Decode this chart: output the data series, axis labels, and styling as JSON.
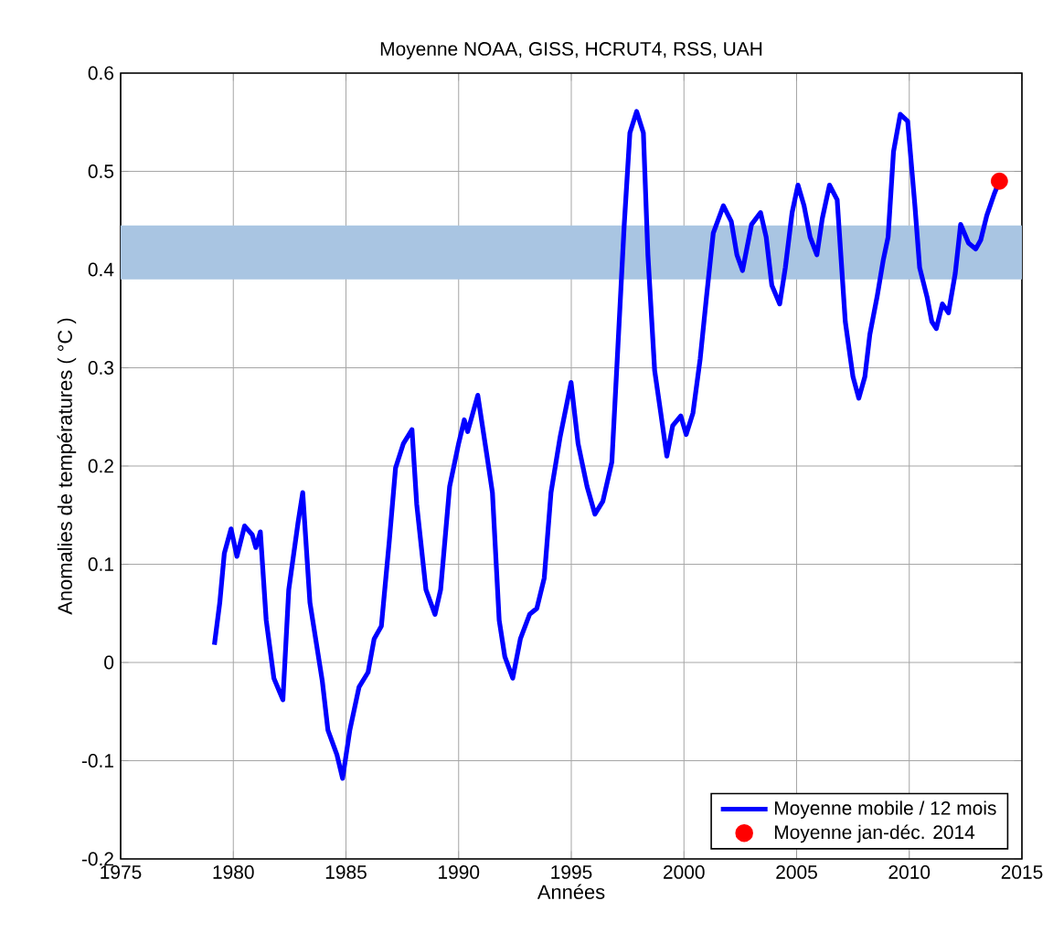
{
  "chart_data": {
    "type": "line",
    "title": "Moyenne NOAA, GISS, HCRUT4, RSS, UAH",
    "xlabel": "Années",
    "ylabel": "Anomalies de températures ( °C )",
    "xlim": [
      1975,
      2015
    ],
    "xticks": [
      1975,
      1980,
      1985,
      1990,
      1995,
      2000,
      2005,
      2010,
      2015
    ],
    "ylim": [
      -0.2,
      0.6
    ],
    "yticks": [
      -0.2,
      -0.1,
      0,
      0.1,
      0.2,
      0.3,
      0.4,
      0.5,
      0.6
    ],
    "grid": true,
    "legend": "bottom right",
    "bands": [
      {
        "axis": "y",
        "from": 0.39,
        "to": 0.445,
        "color": "#a9c5e2"
      }
    ],
    "series": [
      {
        "name": "Moyenne mobile / 12 mois",
        "color": "#0000ff",
        "line_style": "solid",
        "marker": "none",
        "x": [
          1979.16,
          1979.4,
          1979.6,
          1979.9,
          1980.16,
          1980.5,
          1980.84,
          1981.0,
          1981.2,
          1981.46,
          1981.8,
          1982.2,
          1982.46,
          1982.87,
          1983.08,
          1983.4,
          1983.95,
          1984.2,
          1984.6,
          1984.85,
          1985.17,
          1985.58,
          1985.98,
          1986.25,
          1986.57,
          1986.92,
          1987.2,
          1987.55,
          1987.93,
          1988.14,
          1988.55,
          1988.95,
          1989.2,
          1989.6,
          1990.0,
          1990.25,
          1990.4,
          1990.85,
          1991.26,
          1991.5,
          1991.8,
          1992.05,
          1992.4,
          1992.74,
          1993.15,
          1993.47,
          1993.8,
          1994.1,
          1994.5,
          1994.99,
          1995.3,
          1995.7,
          1996.05,
          1996.4,
          1996.8,
          1997.07,
          1997.35,
          1997.6,
          1997.9,
          1998.2,
          1998.4,
          1998.7,
          1998.97,
          1999.24,
          1999.5,
          1999.86,
          2000.1,
          2000.4,
          2000.72,
          2001.0,
          2001.3,
          2001.75,
          2002.1,
          2002.35,
          2002.6,
          2003.0,
          2003.4,
          2003.65,
          2003.9,
          2004.25,
          2004.5,
          2004.8,
          2005.06,
          2005.33,
          2005.6,
          2005.9,
          2006.14,
          2006.46,
          2006.8,
          2007.16,
          2007.5,
          2007.76,
          2008.03,
          2008.25,
          2008.57,
          2008.84,
          2009.06,
          2009.3,
          2009.6,
          2009.93,
          2010.25,
          2010.46,
          2010.79,
          2011.0,
          2011.2,
          2011.47,
          2011.74,
          2012.04,
          2012.28,
          2012.63,
          2012.95,
          2013.17,
          2013.44,
          2013.77,
          2014.0
        ],
        "values": [
          0.018,
          0.061,
          0.111,
          0.136,
          0.108,
          0.139,
          0.13,
          0.117,
          0.133,
          0.043,
          -0.016,
          -0.038,
          0.074,
          0.142,
          0.173,
          0.061,
          -0.019,
          -0.069,
          -0.094,
          -0.118,
          -0.069,
          -0.025,
          -0.01,
          0.024,
          0.037,
          0.123,
          0.198,
          0.223,
          0.237,
          0.161,
          0.074,
          0.049,
          0.074,
          0.179,
          0.223,
          0.247,
          0.235,
          0.272,
          0.21,
          0.173,
          0.043,
          0.006,
          -0.016,
          0.024,
          0.049,
          0.055,
          0.086,
          0.173,
          0.229,
          0.285,
          0.223,
          0.179,
          0.151,
          0.164,
          0.204,
          0.322,
          0.446,
          0.539,
          0.561,
          0.539,
          0.415,
          0.297,
          0.254,
          0.21,
          0.241,
          0.251,
          0.232,
          0.254,
          0.309,
          0.372,
          0.437,
          0.465,
          0.449,
          0.415,
          0.399,
          0.446,
          0.458,
          0.433,
          0.384,
          0.365,
          0.402,
          0.458,
          0.486,
          0.465,
          0.433,
          0.415,
          0.452,
          0.486,
          0.471,
          0.347,
          0.291,
          0.269,
          0.291,
          0.334,
          0.372,
          0.409,
          0.433,
          0.52,
          0.558,
          0.551,
          0.465,
          0.402,
          0.372,
          0.347,
          0.34,
          0.365,
          0.356,
          0.396,
          0.446,
          0.427,
          0.421,
          0.43,
          0.455,
          0.477,
          0.49
        ]
      },
      {
        "name": "Moyenne jan-déc. 2014",
        "type": "scatter",
        "color": "#ff0000",
        "marker": "circle",
        "x": [
          2014.0
        ],
        "values": [
          0.49
        ]
      }
    ]
  }
}
